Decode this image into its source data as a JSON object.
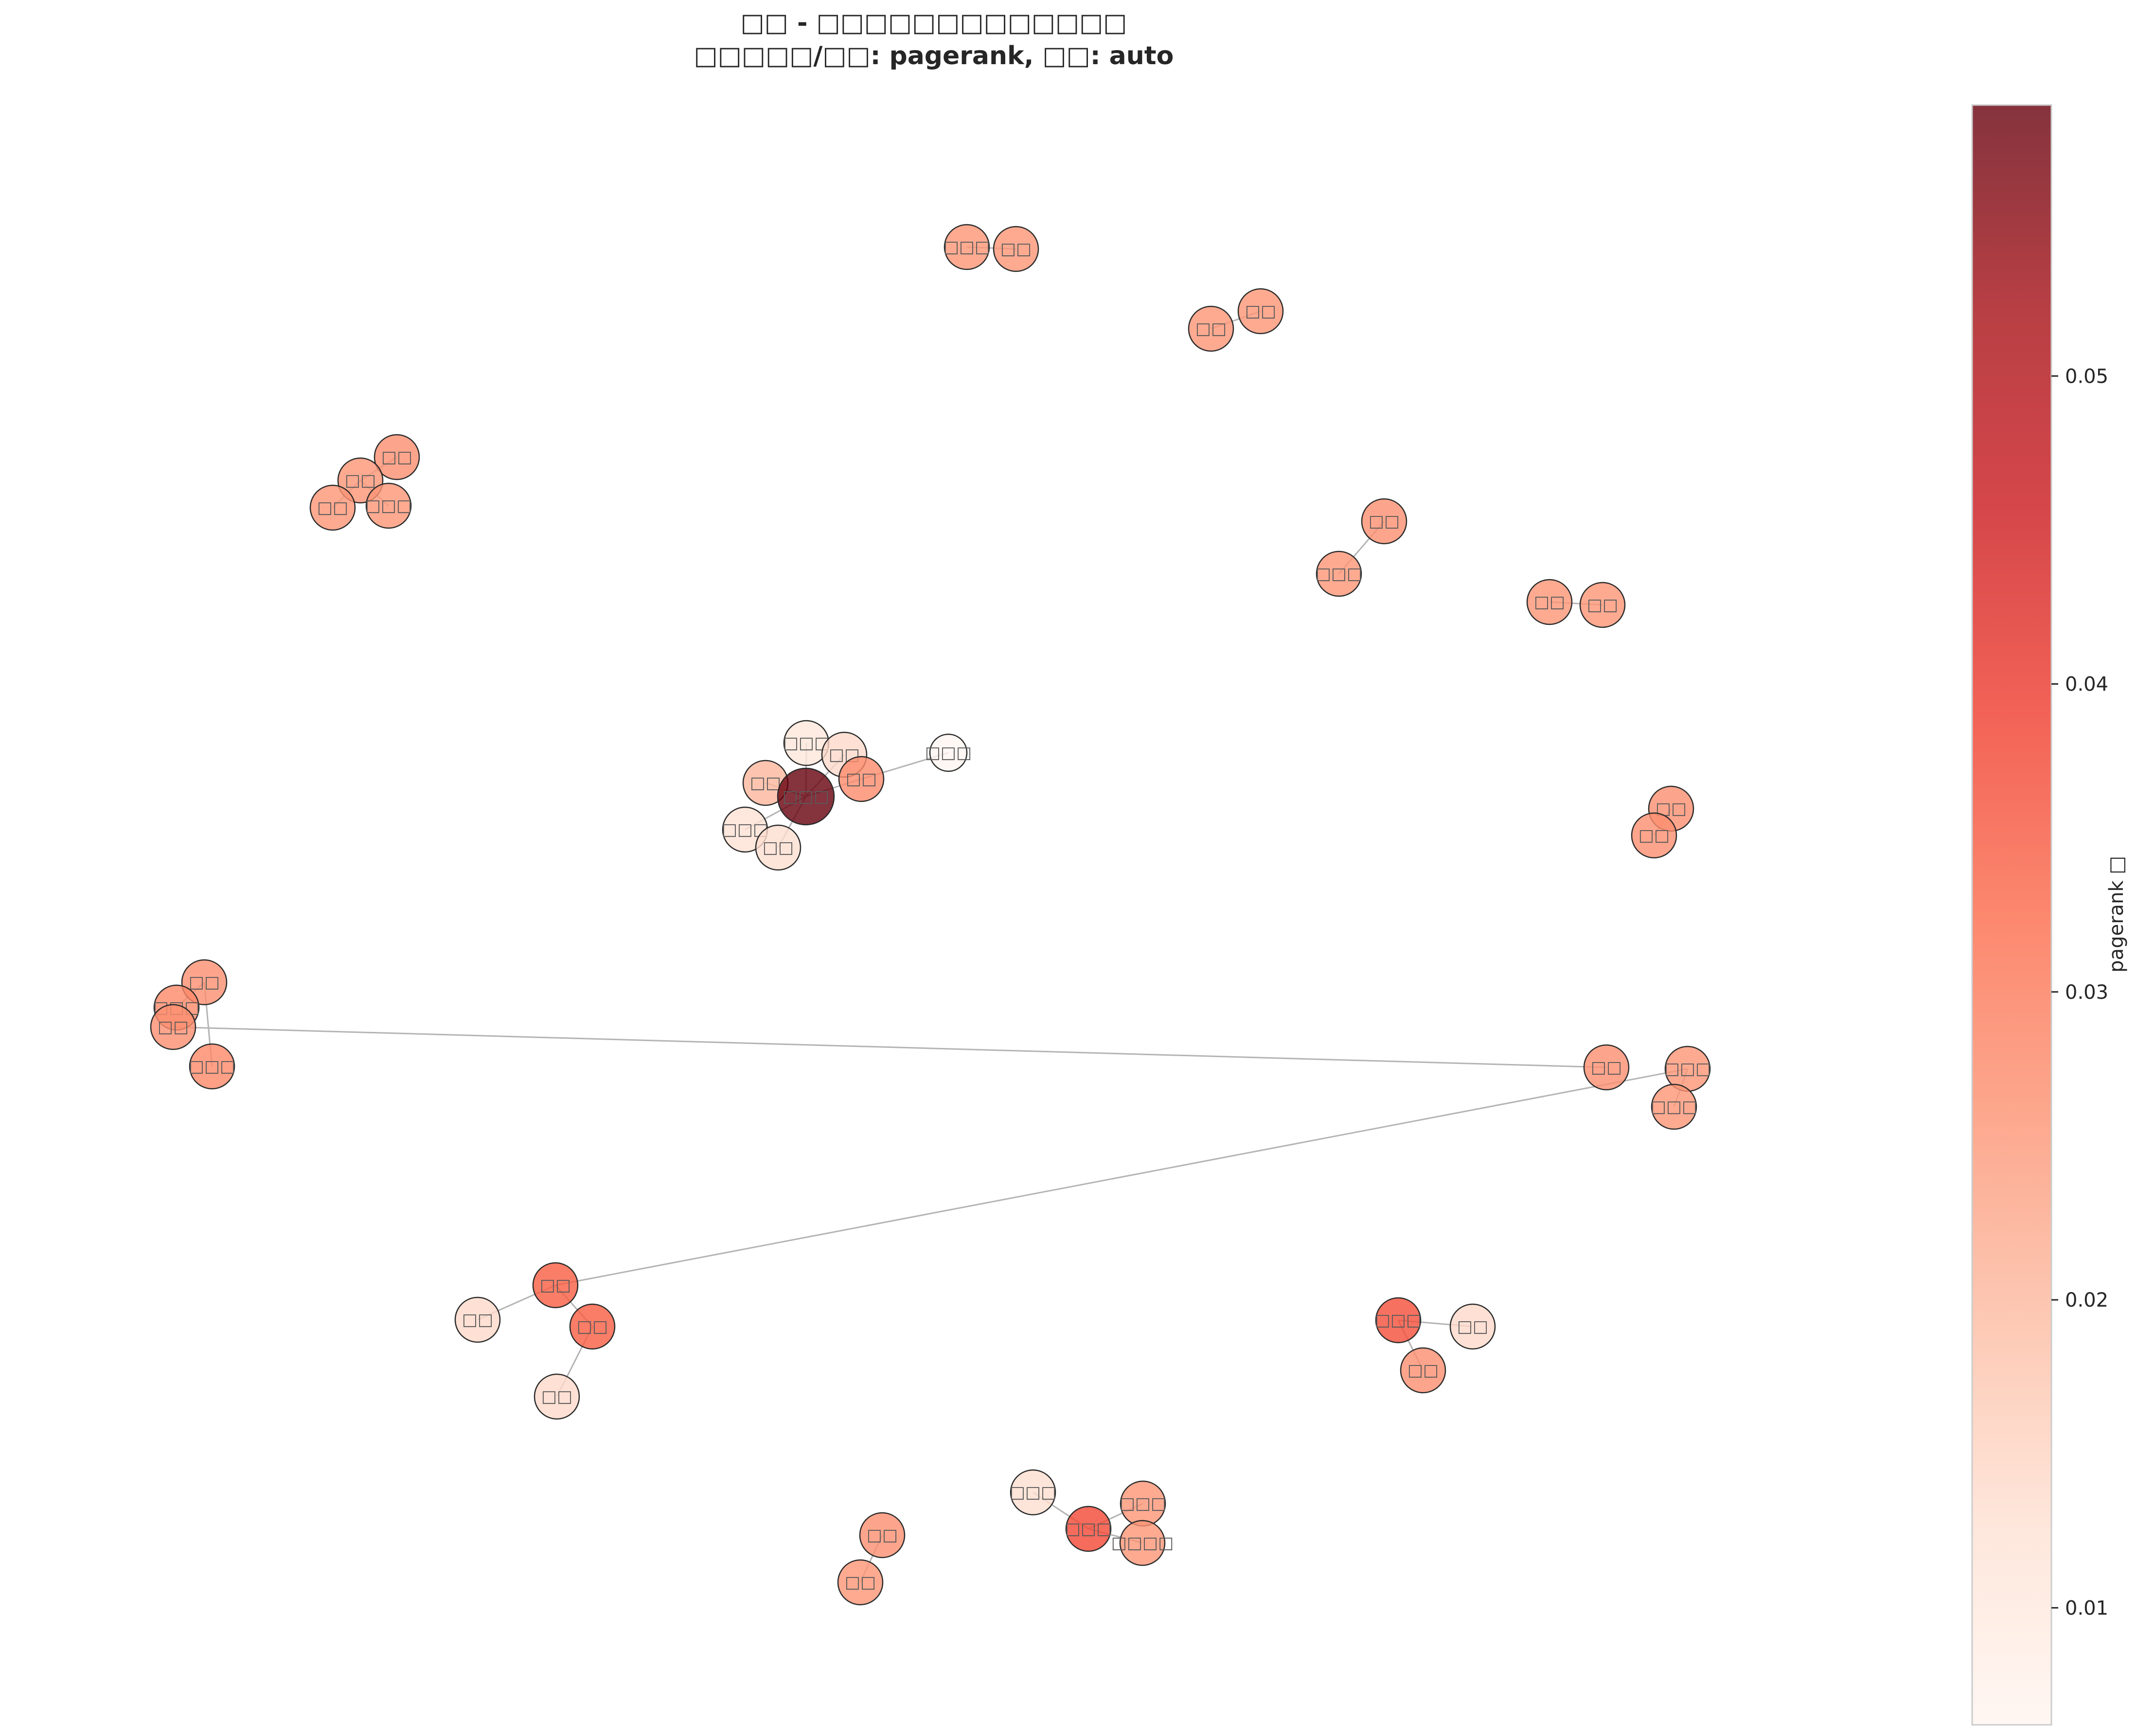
{
  "title": {
    "line1": "□□ - □□□□□□□□□□□□□",
    "line2": "□□□□□/□□: pagerank, □□: auto"
  },
  "colorbar": {
    "label": "pagerank □",
    "min": 0.0062,
    "max": 0.0588,
    "ticks": [
      "0.01",
      "0.02",
      "0.03",
      "0.04",
      "0.05"
    ],
    "colormap": "Reds",
    "alpha": 0.8
  },
  "graph": {
    "nodes": [
      {
        "label": "□□□",
        "pagerank": 0.0255
      },
      {
        "label": "□□",
        "pagerank": 0.0255
      },
      {
        "label": "□□",
        "pagerank": 0.0255
      },
      {
        "label": "□□",
        "pagerank": 0.0255
      },
      {
        "label": "□□",
        "pagerank": 0.0265
      },
      {
        "label": "□□",
        "pagerank": 0.0255
      },
      {
        "label": "□□",
        "pagerank": 0.0255
      },
      {
        "label": "□□□",
        "pagerank": 0.0255
      },
      {
        "label": "□□",
        "pagerank": 0.0265
      },
      {
        "label": "□□□",
        "pagerank": 0.0255
      },
      {
        "label": "□□",
        "pagerank": 0.0255
      },
      {
        "label": "□□",
        "pagerank": 0.0255
      },
      {
        "label": "□□□",
        "pagerank": 0.011
      },
      {
        "label": "□□",
        "pagerank": 0.014
      },
      {
        "label": "□□",
        "pagerank": 0.02
      },
      {
        "label": "□□□",
        "pagerank": 0.0588
      },
      {
        "label": "□□",
        "pagerank": 0.027
      },
      {
        "label": "□□□",
        "pagerank": 0.0062
      },
      {
        "label": "□□□",
        "pagerank": 0.0125
      },
      {
        "label": "□□",
        "pagerank": 0.013
      },
      {
        "label": "□□",
        "pagerank": 0.0265
      },
      {
        "label": "□□",
        "pagerank": 0.0265
      },
      {
        "label": "□□",
        "pagerank": 0.0265
      },
      {
        "label": "□□□",
        "pagerank": 0.0275
      },
      {
        "label": "□□□",
        "pagerank": 0.0275
      },
      {
        "label": "□□",
        "pagerank": 0.0265
      },
      {
        "label": "□□",
        "pagerank": 0.0265
      },
      {
        "label": "□□□",
        "pagerank": 0.0255
      },
      {
        "label": "□□□",
        "pagerank": 0.0255
      },
      {
        "label": "□□",
        "pagerank": 0.0345
      },
      {
        "label": "□□",
        "pagerank": 0.0345
      },
      {
        "label": "□□",
        "pagerank": 0.014
      },
      {
        "label": "□□",
        "pagerank": 0.014
      },
      {
        "label": "□□□",
        "pagerank": 0.0365
      },
      {
        "label": "□□",
        "pagerank": 0.014
      },
      {
        "label": "□□",
        "pagerank": 0.0265
      },
      {
        "label": "□□",
        "pagerank": 0.0265
      },
      {
        "label": "□□",
        "pagerank": 0.0255
      },
      {
        "label": "□□□",
        "pagerank": 0.013
      },
      {
        "label": "□□□",
        "pagerank": 0.0375
      },
      {
        "label": "□□□",
        "pagerank": 0.0255
      },
      {
        "label": "□□□□",
        "pagerank": 0.0255
      }
    ],
    "edges": [
      [
        0,
        1
      ],
      [
        2,
        3
      ],
      [
        4,
        5
      ],
      [
        5,
        6
      ],
      [
        5,
        7
      ],
      [
        8,
        9
      ],
      [
        10,
        11
      ],
      [
        15,
        12
      ],
      [
        15,
        13
      ],
      [
        15,
        14
      ],
      [
        15,
        16
      ],
      [
        16,
        17
      ],
      [
        15,
        18
      ],
      [
        15,
        19
      ],
      [
        20,
        21
      ],
      [
        22,
        23
      ],
      [
        22,
        24
      ],
      [
        25,
        26
      ],
      [
        27,
        28
      ],
      [
        27,
        29
      ],
      [
        29,
        30
      ],
      [
        30,
        32
      ],
      [
        29,
        31
      ],
      [
        33,
        34
      ],
      [
        33,
        35
      ],
      [
        36,
        37
      ],
      [
        38,
        39
      ],
      [
        39,
        40
      ],
      [
        39,
        41
      ]
    ]
  }
}
